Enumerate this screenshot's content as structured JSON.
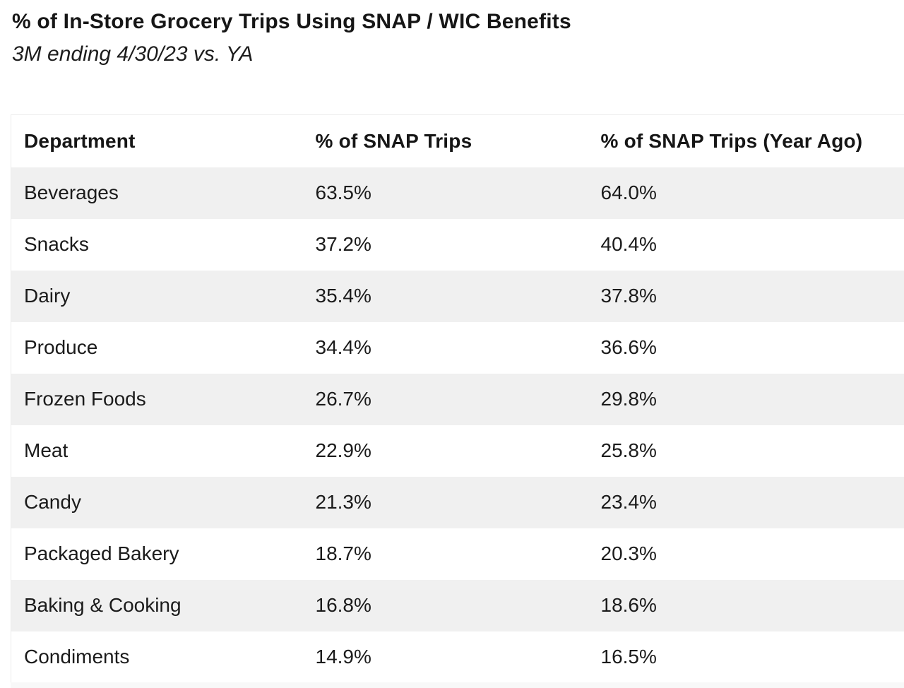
{
  "report": {
    "title": "% of In-Store Grocery Trips Using SNAP / WIC Benefits",
    "subtitle": "3M ending 4/30/23 vs. YA"
  },
  "chart_data": {
    "type": "table",
    "title": "% of In-Store Grocery Trips Using SNAP / WIC Benefits",
    "subtitle": "3M ending 4/30/23 vs. YA",
    "columns": [
      "Department",
      "% of SNAP Trips",
      "% of SNAP Trips (Year Ago)"
    ],
    "rows": [
      {
        "department": "Beverages",
        "snap_trips_pct": "63.5%",
        "snap_trips_pct_year_ago": "64.0%"
      },
      {
        "department": "Snacks",
        "snap_trips_pct": "37.2%",
        "snap_trips_pct_year_ago": "40.4%"
      },
      {
        "department": "Dairy",
        "snap_trips_pct": "35.4%",
        "snap_trips_pct_year_ago": "37.8%"
      },
      {
        "department": "Produce",
        "snap_trips_pct": "34.4%",
        "snap_trips_pct_year_ago": "36.6%"
      },
      {
        "department": "Frozen Foods",
        "snap_trips_pct": "26.7%",
        "snap_trips_pct_year_ago": "29.8%"
      },
      {
        "department": "Meat",
        "snap_trips_pct": "22.9%",
        "snap_trips_pct_year_ago": "25.8%"
      },
      {
        "department": "Candy",
        "snap_trips_pct": "21.3%",
        "snap_trips_pct_year_ago": "23.4%"
      },
      {
        "department": "Packaged Bakery",
        "snap_trips_pct": "18.7%",
        "snap_trips_pct_year_ago": "20.3%"
      },
      {
        "department": "Baking & Cooking",
        "snap_trips_pct": "16.8%",
        "snap_trips_pct_year_ago": "18.6%"
      },
      {
        "department": "Condiments",
        "snap_trips_pct": "14.9%",
        "snap_trips_pct_year_ago": "16.5%"
      }
    ],
    "values_numeric": {
      "snap_trips_pct": [
        63.5,
        37.2,
        35.4,
        34.4,
        26.7,
        22.9,
        21.3,
        18.7,
        16.8,
        14.9
      ],
      "snap_trips_pct_year_ago": [
        64.0,
        40.4,
        37.8,
        36.6,
        29.8,
        25.8,
        23.4,
        20.3,
        18.6,
        16.5
      ]
    },
    "layout_hints": {
      "striped_rows": true,
      "first_data_row_shaded": true,
      "header_background": "#ffffff"
    }
  },
  "colors": {
    "page_background": "#ffffff",
    "row_stripe": "#f0f0f0",
    "table_border": "#ececec",
    "text": "#1b1b1b",
    "bottom_strip": "#f8f8f8"
  }
}
